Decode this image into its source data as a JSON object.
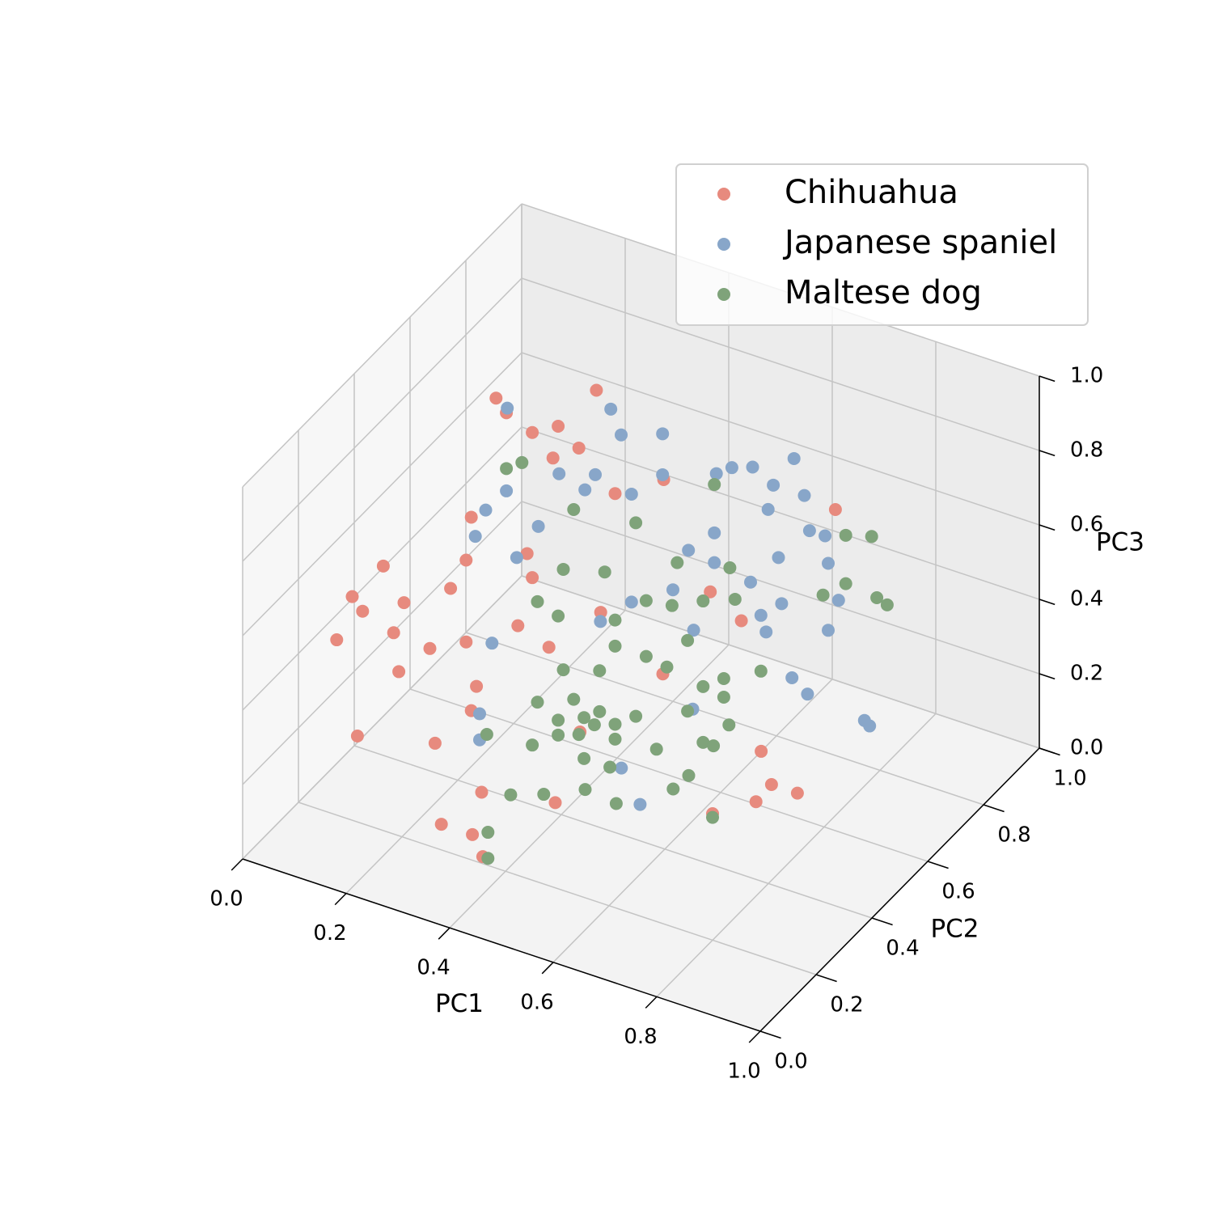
{
  "chart_data": {
    "type": "scatter3d",
    "xlabel": "PC1",
    "ylabel": "PC2",
    "zlabel": "PC3",
    "xlim": [
      0,
      1
    ],
    "ylim": [
      0,
      1
    ],
    "zlim": [
      0,
      1
    ],
    "xticks": [
      {
        "value": 0,
        "label": "0.0"
      },
      0.2,
      0.4,
      0.6,
      0.8,
      {
        "value": 1,
        "label": "1.0"
      }
    ],
    "yticks": [
      {
        "value": 0,
        "label": "0.0"
      },
      0.2,
      0.4,
      0.6,
      0.8,
      {
        "value": 1,
        "label": "1.0"
      }
    ],
    "zticks": [
      {
        "value": 0,
        "label": "0.0"
      },
      0.2,
      0.4,
      0.6,
      0.8,
      {
        "value": 1,
        "label": "1.0"
      }
    ],
    "grid": true,
    "legend": "upper right",
    "series": [
      {
        "name": "Chihuahua",
        "color": "#e78a7e",
        "x": [
          0.02,
          0.05,
          0.11,
          0.14,
          0.06,
          0.21,
          0.28,
          0.22,
          0.24,
          0.29,
          0.34,
          0.36,
          0.38,
          0.33,
          0.45,
          0.49,
          0.66,
          0.27,
          0.24,
          0.15,
          0.2,
          0.27,
          0.29,
          0.28,
          0.37,
          0.43,
          0.53,
          0.3,
          0.33,
          0.41,
          0.39,
          0.55,
          0.8,
          0.83,
          0.86,
          0.91,
          0.84,
          0.64,
          0.58,
          0.65,
          0.49,
          0.13,
          0.07,
          0.28,
          0.29
        ],
        "y": [
          0.3,
          0.3,
          0.3,
          0.3,
          0.3,
          0.3,
          0.3,
          0.5,
          0.5,
          0.5,
          0.5,
          0.6,
          0.5,
          0.5,
          0.5,
          0.6,
          0.9,
          0.3,
          0.3,
          0.3,
          0.3,
          0.3,
          0.3,
          0.3,
          0.3,
          0.3,
          0.3,
          0.3,
          0.1,
          0.1,
          0.1,
          0.1,
          0.2,
          0.3,
          0.3,
          0.3,
          0.3,
          0.6,
          0.6,
          0.3,
          0.3,
          0.3,
          0.3,
          0.5,
          0.5
        ],
        "z": [
          0.37,
          0.5,
          0.61,
          0.34,
          0.13,
          0.18,
          0.82,
          0.96,
          0.93,
          0.9,
          0.94,
          0.97,
          0.9,
          0.85,
          0.81,
          0.79,
          0.56,
          0.7,
          0.61,
          0.53,
          0.43,
          0.48,
          0.37,
          0.3,
          0.57,
          0.54,
          0.68,
          0.09,
          0.17,
          0.12,
          0.17,
          0.33,
          0.34,
          0.31,
          0.37,
          0.37,
          0.45,
          0.48,
          0.53,
          0.57,
          0.34,
          0.44,
          0.47,
          0.57,
          0.51
        ]
      },
      {
        "name": "Japanese spaniel",
        "color": "#88a6c9",
        "x": [
          0.08,
          0.28,
          0.38,
          0.3,
          0.25,
          0.18,
          0.24,
          0.2,
          0.18,
          0.26,
          0.14,
          0.23,
          0.32,
          0.38,
          0.43,
          0.46,
          0.5,
          0.58,
          0.54,
          0.6,
          0.64,
          0.61,
          0.55,
          0.7,
          0.72,
          0.7,
          0.61,
          0.57,
          0.58,
          0.55,
          0.48,
          0.43,
          0.48,
          0.44,
          0.4,
          0.63,
          0.66,
          0.77,
          0.78,
          0.32,
          0.26,
          0.32,
          0.35,
          0.35,
          0.57,
          0.66,
          0.6,
          0.53
        ],
        "y": [
          0.8,
          0.8,
          0.8,
          0.8,
          0.8,
          0.8,
          0.5,
          0.5,
          0.5,
          0.5,
          0.8,
          0.8,
          0.8,
          0.8,
          0.9,
          0.9,
          0.9,
          0.9,
          0.9,
          0.9,
          0.9,
          0.9,
          0.9,
          0.8,
          0.8,
          0.8,
          0.8,
          0.8,
          0.8,
          0.8,
          0.8,
          0.8,
          0.8,
          0.8,
          0.8,
          0.8,
          0.8,
          0.8,
          0.8,
          0.8,
          0.8,
          0.3,
          0.2,
          0.2,
          0.3,
          0.2,
          0.5,
          0.9
        ],
        "z": [
          0.64,
          0.73,
          0.71,
          0.67,
          0.54,
          0.51,
          0.72,
          0.65,
          0.57,
          0.55,
          0.35,
          0.49,
          0.52,
          0.6,
          0.55,
          0.58,
          0.6,
          0.66,
          0.57,
          0.57,
          0.48,
          0.48,
          0.38,
          0.51,
          0.42,
          0.33,
          0.36,
          0.31,
          0.27,
          0.39,
          0.49,
          0.42,
          0.41,
          0.21,
          0.3,
          0.17,
          0.14,
          0.12,
          0.11,
          0.23,
          0.15,
          0.5,
          0.4,
          0.33,
          0.28,
          0.3,
          0.3,
          0.5
        ]
      },
      {
        "name": "Maltese dog",
        "color": "#7fa37a",
        "x": [
          0.24,
          0.27,
          0.37,
          0.49,
          0.35,
          0.3,
          0.34,
          0.43,
          0.45,
          0.51,
          0.57,
          0.56,
          0.62,
          0.48,
          0.51,
          0.52,
          0.68,
          0.73,
          0.68,
          0.74,
          0.76,
          0.69,
          0.57,
          0.59,
          0.55,
          0.51,
          0.45,
          0.42,
          0.35,
          0.37,
          0.3,
          0.34,
          0.39,
          0.42,
          0.45,
          0.49,
          0.41,
          0.38,
          0.34,
          0.29,
          0.45,
          0.39,
          0.44,
          0.53,
          0.62,
          0.64,
          0.67,
          0.66,
          0.62,
          0.59,
          0.7,
          0.67,
          0.5,
          0.56,
          0.42,
          0.41,
          0.42,
          0.42,
          0.31,
          0.8,
          0.66
        ],
        "y": [
          0.5,
          0.5,
          0.5,
          0.5,
          0.5,
          0.5,
          0.5,
          0.5,
          0.5,
          0.5,
          0.5,
          0.5,
          0.5,
          0.8,
          0.8,
          0.8,
          0.9,
          0.9,
          0.9,
          0.9,
          0.9,
          0.8,
          0.8,
          0.5,
          0.5,
          0.5,
          0.5,
          0.5,
          0.5,
          0.5,
          0.5,
          0.5,
          0.5,
          0.5,
          0.5,
          0.5,
          0.5,
          0.5,
          0.5,
          0.5,
          0.5,
          0.5,
          0.5,
          0.5,
          0.5,
          0.5,
          0.5,
          0.5,
          0.5,
          0.5,
          0.3,
          0.3,
          0.3,
          0.3,
          0.3,
          0.2,
          0.1,
          0.1,
          0.3,
          0.2,
          0.5
        ],
        "z": [
          0.78,
          0.81,
          0.73,
          0.75,
          0.56,
          0.45,
          0.43,
          0.59,
          0.47,
          0.55,
          0.68,
          0.56,
          0.6,
          0.62,
          0.41,
          0.33,
          0.5,
          0.52,
          0.37,
          0.36,
          0.35,
          0.42,
          0.16,
          0.48,
          0.39,
          0.4,
          0.4,
          0.32,
          0.29,
          0.22,
          0.18,
          0.15,
          0.18,
          0.21,
          0.19,
          0.23,
          0.17,
          0.13,
          0.11,
          0.06,
          0.15,
          0.07,
          0.07,
          0.16,
          0.22,
          0.22,
          0.29,
          0.36,
          0.37,
          0.29,
          0.32,
          0.27,
          0.19,
          0.18,
          0.14,
          0.21,
          0.19,
          0.12,
          0.25,
          0.33,
          0.41
        ]
      }
    ]
  }
}
